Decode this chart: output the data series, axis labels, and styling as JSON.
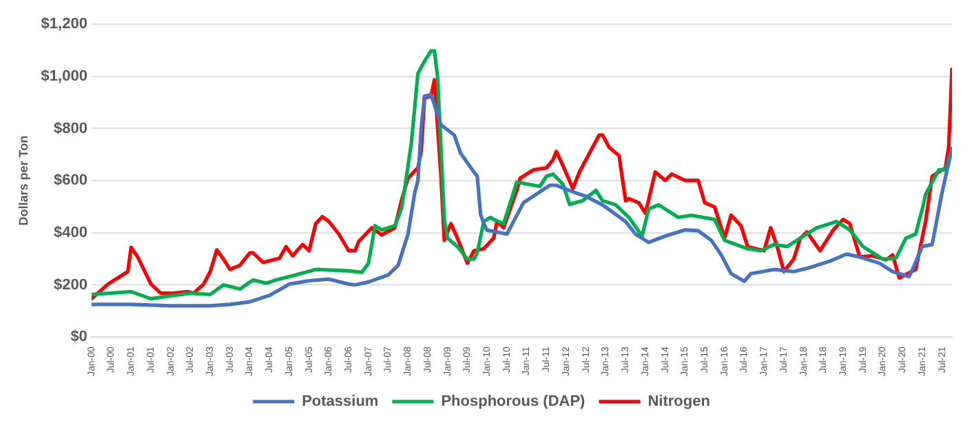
{
  "chart_data": {
    "type": "line",
    "ylabel": "Dollars per Ton",
    "xlim": [
      "2000-01",
      "2021-10"
    ],
    "xticks": [
      {
        "value": "2000-01",
        "label": "Jan-00"
      },
      {
        "value": "2000-07",
        "label": "Jul-00"
      },
      {
        "value": "2001-01",
        "label": "Jan-01"
      },
      {
        "value": "2001-07",
        "label": "Jul-01"
      },
      {
        "value": "2002-01",
        "label": "Jan-02"
      },
      {
        "value": "2002-07",
        "label": "Jul-02"
      },
      {
        "value": "2003-01",
        "label": "Jan-03"
      },
      {
        "value": "2003-07",
        "label": "Jul-03"
      },
      {
        "value": "2004-01",
        "label": "Jan-04"
      },
      {
        "value": "2004-07",
        "label": "Jul-04"
      },
      {
        "value": "2005-01",
        "label": "Jan-05"
      },
      {
        "value": "2005-07",
        "label": "Jul-05"
      },
      {
        "value": "2006-01",
        "label": "Jan-06"
      },
      {
        "value": "2006-07",
        "label": "Jul-06"
      },
      {
        "value": "2007-01",
        "label": "Jan-07"
      },
      {
        "value": "2007-07",
        "label": "Jul-07"
      },
      {
        "value": "2008-01",
        "label": "Jan-08"
      },
      {
        "value": "2008-07",
        "label": "Jul-08"
      },
      {
        "value": "2009-01",
        "label": "Jan-09"
      },
      {
        "value": "2009-07",
        "label": "Jul-09"
      },
      {
        "value": "2010-01",
        "label": "Jan-10"
      },
      {
        "value": "2010-07",
        "label": "Jul-10"
      },
      {
        "value": "2011-01",
        "label": "Jan-11"
      },
      {
        "value": "2011-07",
        "label": "Jul-11"
      },
      {
        "value": "2012-01",
        "label": "Jan-12"
      },
      {
        "value": "2012-07",
        "label": "Jul-12"
      },
      {
        "value": "2013-01",
        "label": "Jan-13"
      },
      {
        "value": "2013-07",
        "label": "Jul-13"
      },
      {
        "value": "2014-01",
        "label": "Jan-14"
      },
      {
        "value": "2014-07",
        "label": "Jul-14"
      },
      {
        "value": "2015-01",
        "label": "Jan-15"
      },
      {
        "value": "2015-07",
        "label": "Jul-15"
      },
      {
        "value": "2016-01",
        "label": "Jan-16"
      },
      {
        "value": "2016-07",
        "label": "Jul-16"
      },
      {
        "value": "2017-01",
        "label": "Jan-17"
      },
      {
        "value": "2017-07",
        "label": "Jul-17"
      },
      {
        "value": "2018-01",
        "label": "Jan-18"
      },
      {
        "value": "2018-07",
        "label": "Jul-18"
      },
      {
        "value": "2019-01",
        "label": "Jan-19"
      },
      {
        "value": "2019-07",
        "label": "Jul-19"
      },
      {
        "value": "2020-01",
        "label": "Jan-20"
      },
      {
        "value": "2020-07",
        "label": "Jul-20"
      },
      {
        "value": "2021-01",
        "label": "Jan-21"
      },
      {
        "value": "2021-07",
        "label": "Jul-21"
      }
    ],
    "ylim": [
      0,
      1200
    ],
    "yticks": [
      {
        "value": 0,
        "label": "$0"
      },
      {
        "value": 200,
        "label": "$200"
      },
      {
        "value": 400,
        "label": "$400"
      },
      {
        "value": 600,
        "label": "$600"
      },
      {
        "value": 800,
        "label": "$800"
      },
      {
        "value": 1000,
        "label": "$1,000"
      },
      {
        "value": 1200,
        "label": "$1,200"
      }
    ],
    "grid": "y",
    "legend": "bottom",
    "marker": "none",
    "line_style": "solid",
    "series": [
      {
        "name": "Potassium",
        "color": "#4472c4",
        "x": [
          "2000-01",
          "2001-01",
          "2002-01",
          "2003-01",
          "2003-07",
          "2004-01",
          "2004-07",
          "2005-01",
          "2005-07",
          "2006-01",
          "2006-07",
          "2006-09",
          "2007-01",
          "2007-07",
          "2007-10",
          "2008-01",
          "2008-03",
          "2008-04",
          "2008-05",
          "2008-06",
          "2008-08",
          "2008-11",
          "2009-03",
          "2009-05",
          "2009-09",
          "2009-10",
          "2009-11",
          "2009-12",
          "2010-01",
          "2010-07",
          "2010-12",
          "2011-03",
          "2011-08",
          "2011-10",
          "2012-02",
          "2012-07",
          "2012-12",
          "2013-07",
          "2013-10",
          "2014-02",
          "2014-07",
          "2015-01",
          "2015-05",
          "2015-09",
          "2015-12",
          "2016-03",
          "2016-07",
          "2016-09",
          "2017-04",
          "2017-10",
          "2018-03",
          "2018-09",
          "2019-02",
          "2019-06",
          "2019-12",
          "2020-04",
          "2020-09",
          "2020-10",
          "2021-01",
          "2021-04",
          "2021-07",
          "2021-10"
        ],
        "values": [
          125,
          125,
          120,
          120,
          125,
          135,
          160,
          203,
          216,
          222,
          203,
          200,
          211,
          238,
          275,
          395,
          550,
          600,
          800,
          924,
          930,
          814,
          775,
          704,
          633,
          617,
          470,
          435,
          410,
          395,
          515,
          540,
          582,
          582,
          562,
          539,
          507,
          443,
          395,
          363,
          387,
          411,
          408,
          371,
          315,
          243,
          214,
          243,
          259,
          251,
          267,
          291,
          318,
          307,
          283,
          251,
          232,
          259,
          347,
          355,
          555,
          724
        ]
      },
      {
        "name": "Phosphorous (DAP)",
        "color": "#00b050",
        "x": [
          "2000-01",
          "2001-01",
          "2001-07",
          "2002-01",
          "2002-07",
          "2003-01",
          "2003-05",
          "2003-10",
          "2004-02",
          "2004-06",
          "2004-09",
          "2005-01",
          "2005-09",
          "2006-07",
          "2006-11",
          "2007-01",
          "2007-03",
          "2007-05",
          "2007-09",
          "2007-11",
          "2007-12",
          "2008-02",
          "2008-04",
          "2008-06",
          "2008-08",
          "2008-09",
          "2008-10",
          "2008-12",
          "2009-01",
          "2009-04",
          "2009-07",
          "2009-09",
          "2009-10",
          "2009-12",
          "2010-02",
          "2010-03",
          "2010-06",
          "2010-10",
          "2011-05",
          "2011-07",
          "2011-09",
          "2011-12",
          "2012-02",
          "2012-06",
          "2012-10",
          "2012-12",
          "2013-04",
          "2013-08",
          "2013-12",
          "2014-02",
          "2014-05",
          "2014-11",
          "2015-03",
          "2015-10",
          "2016-01",
          "2016-08",
          "2016-12",
          "2017-04",
          "2017-08",
          "2017-12",
          "2018-05",
          "2018-09",
          "2018-11",
          "2019-03",
          "2019-07",
          "2019-11",
          "2020-01",
          "2020-05",
          "2020-08",
          "2020-11",
          "2021-01",
          "2021-02",
          "2021-06",
          "2021-08",
          "2021-10"
        ],
        "values": [
          163,
          174,
          147,
          158,
          168,
          163,
          200,
          184,
          219,
          206,
          219,
          232,
          259,
          254,
          248,
          283,
          427,
          411,
          427,
          491,
          570,
          743,
          1011,
          1058,
          1098,
          1098,
          995,
          450,
          379,
          347,
          299,
          299,
          323,
          443,
          459,
          451,
          435,
          594,
          578,
          617,
          625,
          586,
          509,
          523,
          563,
          523,
          507,
          459,
          387,
          491,
          507,
          459,
          467,
          451,
          371,
          339,
          331,
          355,
          347,
          379,
          419,
          435,
          443,
          411,
          347,
          315,
          299,
          302,
          379,
          395,
          491,
          547,
          641,
          641,
          720
        ]
      },
      {
        "name": "Nitrogen",
        "color": "#ff0000",
        "x": [
          "2000-01",
          "2000-06",
          "2000-10",
          "2000-12",
          "2001-01",
          "2001-03",
          "2001-07",
          "2001-10",
          "2002-02",
          "2002-06",
          "2002-08",
          "2002-11",
          "2003-01",
          "2003-03",
          "2003-05",
          "2003-07",
          "2003-10",
          "2004-01",
          "2004-02",
          "2004-05",
          "2004-08",
          "2004-10",
          "2004-12",
          "2005-02",
          "2005-05",
          "2005-07",
          "2005-09",
          "2005-11",
          "2006-01",
          "2006-04",
          "2006-07",
          "2006-09",
          "2006-10",
          "2007-02",
          "2007-05",
          "2007-09",
          "2007-11",
          "2008-01",
          "2008-04",
          "2008-05",
          "2008-06",
          "2008-08",
          "2008-09",
          "2008-11",
          "2008-12",
          "2009-02",
          "2009-04",
          "2009-07",
          "2009-09",
          "2009-12",
          "2010-03",
          "2010-04",
          "2010-06",
          "2010-10",
          "2010-11",
          "2011-03",
          "2011-07",
          "2011-09",
          "2011-10",
          "2011-12",
          "2012-03",
          "2012-05",
          "2012-09",
          "2012-11",
          "2012-12",
          "2013-02",
          "2013-05",
          "2013-07",
          "2013-08",
          "2013-11",
          "2014-01",
          "2014-04",
          "2014-07",
          "2014-09",
          "2015-01",
          "2015-05",
          "2015-07",
          "2015-10",
          "2016-01",
          "2016-03",
          "2016-06",
          "2016-08",
          "2017-01",
          "2017-03",
          "2017-05",
          "2017-07",
          "2017-10",
          "2017-12",
          "2018-02",
          "2018-06",
          "2018-10",
          "2019-01",
          "2019-03",
          "2019-06",
          "2019-10",
          "2020-02",
          "2020-04",
          "2020-06",
          "2020-11",
          "2021-02",
          "2021-04",
          "2021-08",
          "2021-09",
          "2021-10"
        ],
        "values": [
          147,
          203,
          235,
          251,
          344,
          307,
          203,
          168,
          168,
          174,
          168,
          203,
          251,
          334,
          299,
          259,
          275,
          323,
          323,
          286,
          296,
          302,
          347,
          312,
          355,
          331,
          435,
          462,
          443,
          395,
          331,
          331,
          366,
          419,
          392,
          419,
          523,
          609,
          649,
          712,
          917,
          924,
          987,
          617,
          371,
          435,
          379,
          283,
          331,
          339,
          380,
          443,
          419,
          563,
          609,
          641,
          649,
          680,
          712,
          657,
          570,
          633,
          728,
          775,
          775,
          728,
          696,
          523,
          531,
          515,
          475,
          633,
          601,
          625,
          601,
          601,
          515,
          499,
          379,
          467,
          427,
          347,
          331,
          419,
          347,
          251,
          299,
          379,
          403,
          331,
          411,
          451,
          435,
          307,
          312,
          296,
          315,
          227,
          259,
          443,
          617,
          649,
          728,
          1027
        ]
      }
    ]
  }
}
